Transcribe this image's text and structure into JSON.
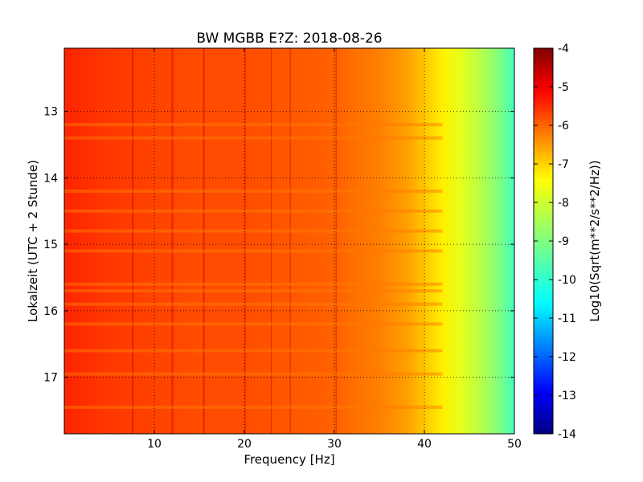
{
  "chart_data": {
    "type": "heatmap",
    "title": "BW MGBB E?Z: 2018-08-26",
    "xlabel": "Frequency [Hz]",
    "ylabel": "Lokalzeit (UTC + 2 Stunde)",
    "xlim": [
      0,
      50
    ],
    "ylim": [
      12.05,
      17.85
    ],
    "y_inverted": true,
    "x_ticks": [
      "10",
      "20",
      "30",
      "40",
      "50"
    ],
    "y_ticks": [
      "13",
      "14",
      "15",
      "16",
      "17"
    ],
    "grid": true,
    "colormap": "jet",
    "colorbar": {
      "label": "Log10(Sqrt(m**2/s**2/Hz))",
      "min": -14,
      "max": -4,
      "ticks": [
        "-4",
        "-5",
        "-6",
        "-7",
        "-8",
        "-9",
        "-10",
        "-11",
        "-12",
        "-13",
        "-14"
      ]
    },
    "spectrum_profile": {
      "frequency_hz": [
        0,
        5,
        10,
        15,
        20,
        25,
        30,
        35,
        38,
        40,
        42,
        44,
        46,
        48,
        50
      ],
      "log_amplitude": [
        -5.6,
        -5.8,
        -5.9,
        -6.0,
        -6.0,
        -6.1,
        -6.2,
        -6.5,
        -6.8,
        -7.2,
        -7.6,
        -8.0,
        -8.4,
        -8.9,
        -9.6
      ]
    },
    "persistent_lines_hz": [
      7.6,
      12.0,
      15.5,
      20.1,
      23.0,
      25.1,
      30.2
    ],
    "broadband_bursts_hour": [
      13.2,
      13.4,
      14.2,
      14.5,
      14.8,
      15.1,
      15.6,
      15.7,
      15.9,
      16.2,
      16.6,
      16.95,
      17.45
    ]
  }
}
